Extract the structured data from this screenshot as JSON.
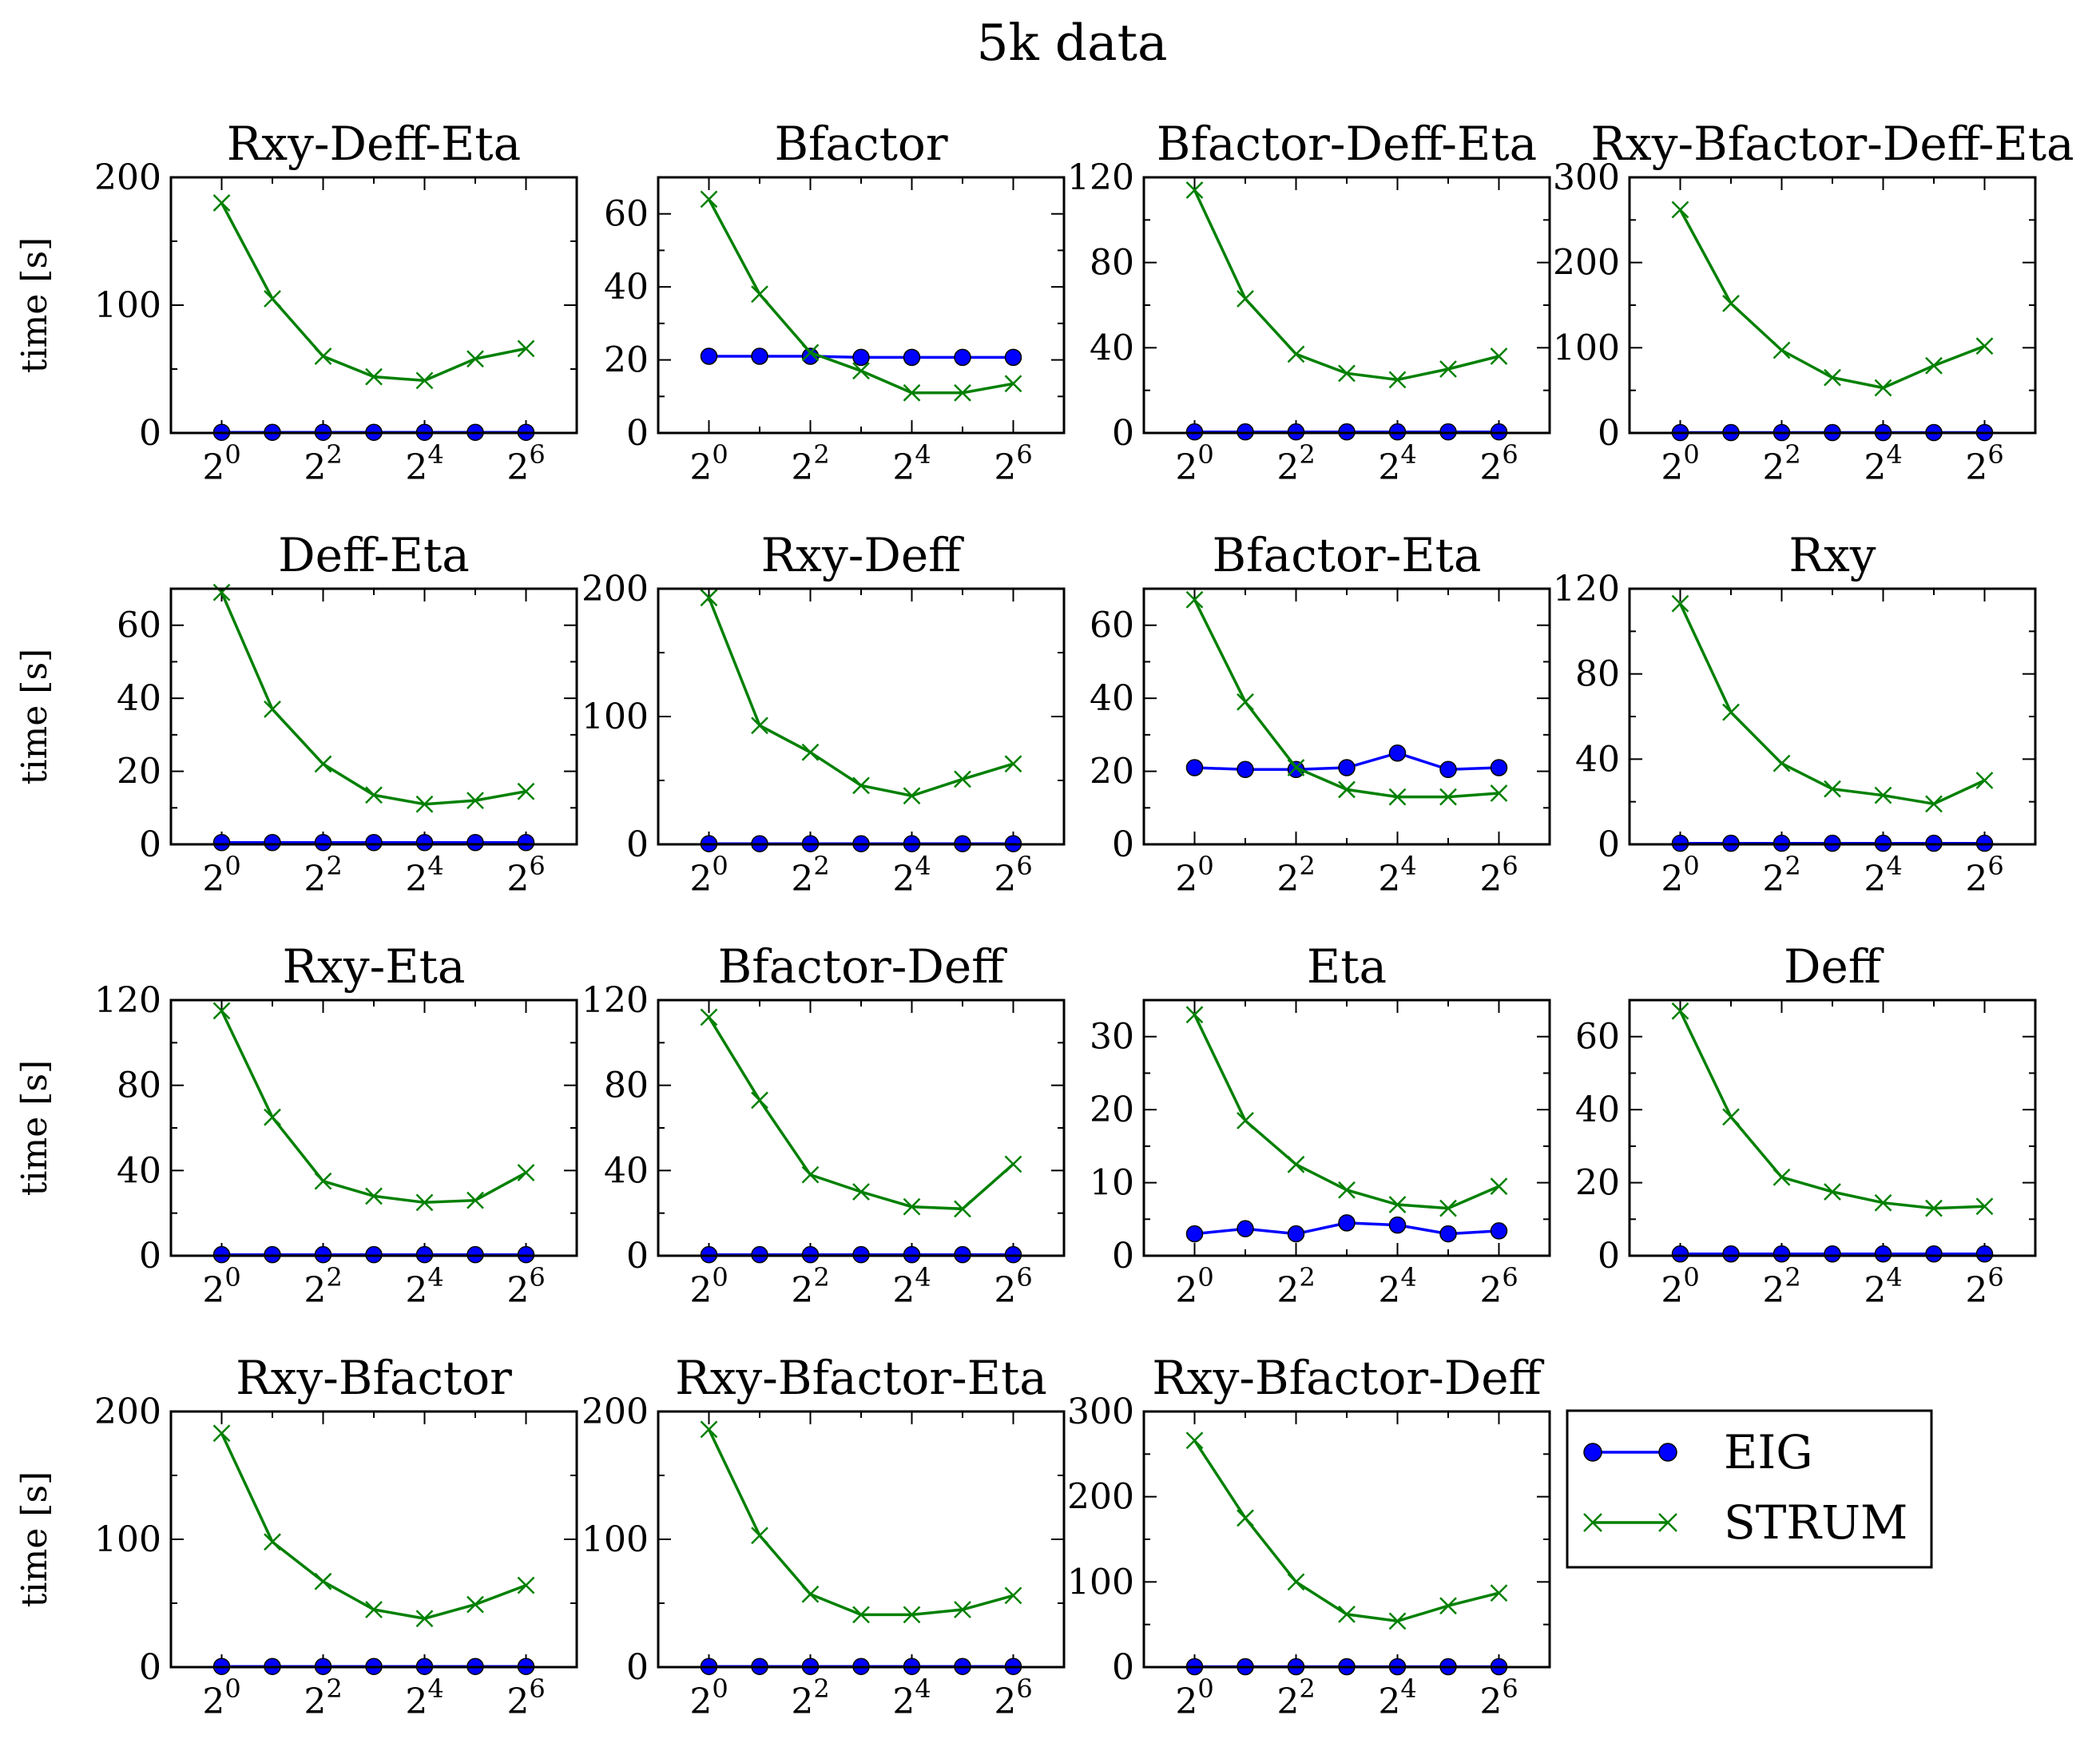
{
  "figure_title": "5k data",
  "legend": {
    "placement": "lower-right",
    "entries": [
      {
        "label": "EIG",
        "color": "#0000ff",
        "marker": "circle"
      },
      {
        "label": "STRUM",
        "color": "#008000",
        "marker": "x"
      }
    ]
  },
  "chart_data": [
    {
      "type": "line",
      "title": "Rxy-Deff-Eta",
      "ylabel": "time [s]",
      "x": [
        1,
        2,
        4,
        8,
        16,
        32,
        64
      ],
      "xscale": "log2",
      "xticks": [
        "2^0",
        "2^2",
        "2^4",
        "2^6"
      ],
      "ylim": [
        0,
        200
      ],
      "yticks": [
        0,
        100,
        200
      ],
      "yminor": [
        50,
        150
      ],
      "series": [
        {
          "name": "EIG",
          "values": [
            0.5,
            0.5,
            0.5,
            0.5,
            0.5,
            0.5,
            0.5
          ]
        },
        {
          "name": "STRUM",
          "values": [
            180,
            105,
            60,
            44,
            41,
            58,
            66
          ]
        }
      ]
    },
    {
      "type": "line",
      "title": "Bfactor",
      "ylabel": "",
      "x": [
        1,
        2,
        4,
        8,
        16,
        32,
        64
      ],
      "xscale": "log2",
      "xticks": [
        "2^0",
        "2^2",
        "2^4",
        "2^6"
      ],
      "ylim": [
        0,
        70
      ],
      "yticks": [
        0,
        20,
        40,
        60
      ],
      "yminor": [
        10,
        30,
        50,
        70
      ],
      "series": [
        {
          "name": "EIG",
          "values": [
            21,
            21,
            21,
            20.7,
            20.7,
            20.7,
            20.7
          ]
        },
        {
          "name": "STRUM",
          "values": [
            64,
            38,
            22,
            17,
            11,
            11,
            13.5
          ]
        }
      ]
    },
    {
      "type": "line",
      "title": "Bfactor-Deff-Eta",
      "ylabel": "",
      "x": [
        1,
        2,
        4,
        8,
        16,
        32,
        64
      ],
      "xscale": "log2",
      "xticks": [
        "2^0",
        "2^2",
        "2^4",
        "2^6"
      ],
      "ylim": [
        0,
        120
      ],
      "yticks": [
        0,
        40,
        80,
        120
      ],
      "yminor": [
        20,
        60,
        100
      ],
      "series": [
        {
          "name": "EIG",
          "values": [
            0.5,
            0.5,
            0.5,
            0.5,
            0.5,
            0.5,
            0.5
          ]
        },
        {
          "name": "STRUM",
          "values": [
            114,
            63,
            37,
            28,
            25,
            30,
            36
          ]
        }
      ]
    },
    {
      "type": "line",
      "title": "Rxy-Bfactor-Deff-Eta",
      "ylabel": "",
      "x": [
        1,
        2,
        4,
        8,
        16,
        32,
        64
      ],
      "xscale": "log2",
      "xticks": [
        "2^0",
        "2^2",
        "2^4",
        "2^6"
      ],
      "ylim": [
        0,
        300
      ],
      "yticks": [
        0,
        100,
        200,
        300
      ],
      "yminor": [
        50,
        150,
        250
      ],
      "series": [
        {
          "name": "EIG",
          "values": [
            0.5,
            0.5,
            0.5,
            0.5,
            0.5,
            0.5,
            0.5
          ]
        },
        {
          "name": "STRUM",
          "values": [
            262,
            152,
            97,
            65,
            53,
            79,
            102
          ]
        }
      ]
    },
    {
      "type": "line",
      "title": "Deff-Eta",
      "ylabel": "time [s]",
      "x": [
        1,
        2,
        4,
        8,
        16,
        32,
        64
      ],
      "xscale": "log2",
      "xticks": [
        "2^0",
        "2^2",
        "2^4",
        "2^6"
      ],
      "ylim": [
        0,
        70
      ],
      "yticks": [
        0,
        20,
        40,
        60
      ],
      "yminor": [
        10,
        30,
        50,
        70
      ],
      "series": [
        {
          "name": "EIG",
          "values": [
            0.5,
            0.5,
            0.5,
            0.5,
            0.5,
            0.5,
            0.5
          ]
        },
        {
          "name": "STRUM",
          "values": [
            69,
            37,
            22,
            13.5,
            11,
            12,
            14.5
          ]
        }
      ]
    },
    {
      "type": "line",
      "title": "Rxy-Deff",
      "ylabel": "",
      "x": [
        1,
        2,
        4,
        8,
        16,
        32,
        64
      ],
      "xscale": "log2",
      "xticks": [
        "2^0",
        "2^2",
        "2^4",
        "2^6"
      ],
      "ylim": [
        0,
        200
      ],
      "yticks": [
        0,
        100,
        200
      ],
      "yminor": [
        50,
        150
      ],
      "series": [
        {
          "name": "EIG",
          "values": [
            0.5,
            0.5,
            0.5,
            0.5,
            0.5,
            0.5,
            0.5
          ]
        },
        {
          "name": "STRUM",
          "values": [
            193,
            93,
            72,
            46,
            38,
            51,
            63
          ]
        }
      ]
    },
    {
      "type": "line",
      "title": "Bfactor-Eta",
      "ylabel": "",
      "x": [
        1,
        2,
        4,
        8,
        16,
        32,
        64
      ],
      "xscale": "log2",
      "xticks": [
        "2^0",
        "2^2",
        "2^4",
        "2^6"
      ],
      "ylim": [
        0,
        70
      ],
      "yticks": [
        0,
        20,
        40,
        60
      ],
      "yminor": [
        10,
        30,
        50,
        70
      ],
      "series": [
        {
          "name": "EIG",
          "values": [
            21,
            20.5,
            20.5,
            21,
            25,
            20.5,
            21
          ]
        },
        {
          "name": "STRUM",
          "values": [
            67,
            39,
            21,
            15,
            13,
            13,
            14
          ]
        }
      ]
    },
    {
      "type": "line",
      "title": "Rxy",
      "ylabel": "",
      "x": [
        1,
        2,
        4,
        8,
        16,
        32,
        64
      ],
      "xscale": "log2",
      "xticks": [
        "2^0",
        "2^2",
        "2^4",
        "2^6"
      ],
      "ylim": [
        0,
        120
      ],
      "yticks": [
        0,
        40,
        80,
        120
      ],
      "yminor": [
        20,
        60,
        100
      ],
      "series": [
        {
          "name": "EIG",
          "values": [
            0.5,
            0.5,
            0.5,
            0.5,
            0.5,
            0.5,
            0.5
          ]
        },
        {
          "name": "STRUM",
          "values": [
            113,
            62,
            38,
            26,
            23,
            19,
            30
          ]
        }
      ]
    },
    {
      "type": "line",
      "title": "Rxy-Eta",
      "ylabel": "time [s]",
      "x": [
        1,
        2,
        4,
        8,
        16,
        32,
        64
      ],
      "xscale": "log2",
      "xticks": [
        "2^0",
        "2^2",
        "2^4",
        "2^6"
      ],
      "ylim": [
        0,
        120
      ],
      "yticks": [
        0,
        40,
        80,
        120
      ],
      "yminor": [
        20,
        60,
        100
      ],
      "series": [
        {
          "name": "EIG",
          "values": [
            0.5,
            0.5,
            0.5,
            0.5,
            0.5,
            0.5,
            0.5
          ]
        },
        {
          "name": "STRUM",
          "values": [
            115,
            65,
            35,
            28,
            25,
            26,
            39
          ]
        }
      ]
    },
    {
      "type": "line",
      "title": "Bfactor-Deff",
      "ylabel": "",
      "x": [
        1,
        2,
        4,
        8,
        16,
        32,
        64
      ],
      "xscale": "log2",
      "xticks": [
        "2^0",
        "2^2",
        "2^4",
        "2^6"
      ],
      "ylim": [
        0,
        120
      ],
      "yticks": [
        0,
        40,
        80,
        120
      ],
      "yminor": [
        20,
        60,
        100
      ],
      "series": [
        {
          "name": "EIG",
          "values": [
            0.5,
            0.5,
            0.5,
            0.5,
            0.5,
            0.5,
            0.5
          ]
        },
        {
          "name": "STRUM",
          "values": [
            112,
            73,
            38,
            30,
            23,
            22,
            43
          ]
        }
      ]
    },
    {
      "type": "line",
      "title": "Eta",
      "ylabel": "",
      "x": [
        1,
        2,
        4,
        8,
        16,
        32,
        64
      ],
      "xscale": "log2",
      "xticks": [
        "2^0",
        "2^2",
        "2^4",
        "2^6"
      ],
      "ylim": [
        0,
        35
      ],
      "yticks": [
        0,
        10,
        20,
        30
      ],
      "yminor": [
        5,
        15,
        25,
        35
      ],
      "series": [
        {
          "name": "EIG",
          "values": [
            3,
            3.7,
            3,
            4.5,
            4.2,
            3,
            3.4
          ]
        },
        {
          "name": "STRUM",
          "values": [
            33,
            18.5,
            12.5,
            9,
            7,
            6.5,
            9.5
          ]
        }
      ]
    },
    {
      "type": "line",
      "title": "Deff",
      "ylabel": "",
      "x": [
        1,
        2,
        4,
        8,
        16,
        32,
        64
      ],
      "xscale": "log2",
      "xticks": [
        "2^0",
        "2^2",
        "2^4",
        "2^6"
      ],
      "ylim": [
        0,
        70
      ],
      "yticks": [
        0,
        20,
        40,
        60
      ],
      "yminor": [
        10,
        30,
        50,
        70
      ],
      "series": [
        {
          "name": "EIG",
          "values": [
            0.5,
            0.5,
            0.5,
            0.5,
            0.5,
            0.5,
            0.5
          ]
        },
        {
          "name": "STRUM",
          "values": [
            67,
            38,
            21.5,
            17.5,
            14.5,
            13,
            13.5
          ]
        }
      ]
    },
    {
      "type": "line",
      "title": "Rxy-Bfactor",
      "ylabel": "time [s]",
      "x": [
        1,
        2,
        4,
        8,
        16,
        32,
        64
      ],
      "xscale": "log2",
      "xticks": [
        "2^0",
        "2^2",
        "2^4",
        "2^6"
      ],
      "ylim": [
        0,
        200
      ],
      "yticks": [
        0,
        100,
        200
      ],
      "yminor": [
        50,
        150
      ],
      "series": [
        {
          "name": "EIG",
          "values": [
            0.5,
            0.5,
            0.5,
            0.5,
            0.5,
            0.5,
            0.5
          ]
        },
        {
          "name": "STRUM",
          "values": [
            183,
            98,
            67,
            45,
            38,
            49,
            64
          ]
        }
      ]
    },
    {
      "type": "line",
      "title": "Rxy-Bfactor-Eta",
      "ylabel": "",
      "x": [
        1,
        2,
        4,
        8,
        16,
        32,
        64
      ],
      "xscale": "log2",
      "xticks": [
        "2^0",
        "2^2",
        "2^4",
        "2^6"
      ],
      "ylim": [
        0,
        200
      ],
      "yticks": [
        0,
        100,
        200
      ],
      "yminor": [
        50,
        150
      ],
      "series": [
        {
          "name": "EIG",
          "values": [
            0.5,
            0.5,
            0.5,
            0.5,
            0.5,
            0.5,
            0.5
          ]
        },
        {
          "name": "STRUM",
          "values": [
            186,
            103,
            57,
            41,
            41,
            45,
            56
          ]
        }
      ]
    },
    {
      "type": "line",
      "title": "Rxy-Bfactor-Deff",
      "ylabel": "",
      "x": [
        1,
        2,
        4,
        8,
        16,
        32,
        64
      ],
      "xscale": "log2",
      "xticks": [
        "2^0",
        "2^2",
        "2^4",
        "2^6"
      ],
      "ylim": [
        0,
        300
      ],
      "yticks": [
        0,
        100,
        200,
        300
      ],
      "yminor": [
        50,
        150,
        250
      ],
      "series": [
        {
          "name": "EIG",
          "values": [
            0.5,
            0.5,
            0.5,
            0.5,
            0.5,
            0.5,
            0.5
          ]
        },
        {
          "name": "STRUM",
          "values": [
            266,
            175,
            100,
            62,
            54,
            72,
            87
          ]
        }
      ]
    }
  ]
}
